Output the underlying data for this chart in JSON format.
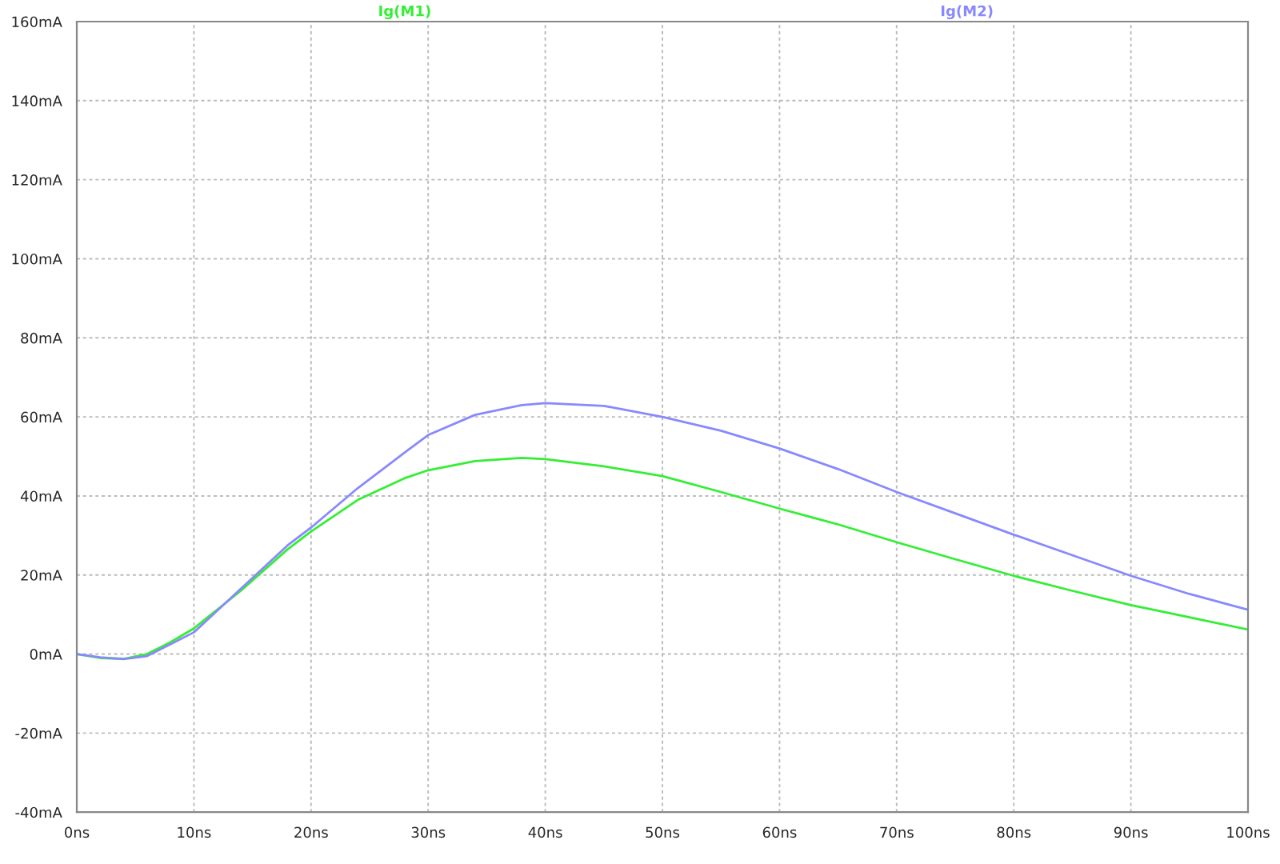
{
  "chart_data": {
    "type": "line",
    "x": [
      0,
      2,
      4,
      6,
      8,
      10,
      14,
      18,
      20,
      24,
      28,
      30,
      34,
      38,
      40,
      45,
      50,
      55,
      60,
      65,
      70,
      75,
      80,
      85,
      90,
      95,
      100
    ],
    "series": [
      {
        "name": "Ig(M1)",
        "color": "#33ee33",
        "values": [
          0,
          -1,
          -1.2,
          0,
          3,
          6.5,
          16,
          26.5,
          31,
          39,
          44.5,
          46.5,
          48.8,
          49.6,
          49.3,
          47.5,
          45,
          41,
          36.8,
          32.8,
          28.3,
          24,
          19.8,
          16,
          12.4,
          9.3,
          6.2
        ]
      },
      {
        "name": "Ig(M2)",
        "color": "#8888ff",
        "values": [
          0,
          -0.8,
          -1.3,
          -0.5,
          2.5,
          5.5,
          16.5,
          27.5,
          32,
          42,
          51,
          55.4,
          60.5,
          63,
          63.5,
          62.8,
          60,
          56.5,
          52,
          46.8,
          41,
          35.6,
          30.2,
          25,
          19.8,
          15.2,
          11.2
        ]
      }
    ],
    "xlim": [
      0,
      100
    ],
    "ylim": [
      -40,
      160
    ],
    "xticks": [
      {
        "value": 0,
        "label": "0ns"
      },
      {
        "value": 10,
        "label": "10ns"
      },
      {
        "value": 20,
        "label": "20ns"
      },
      {
        "value": 30,
        "label": "30ns"
      },
      {
        "value": 40,
        "label": "40ns"
      },
      {
        "value": 50,
        "label": "50ns"
      },
      {
        "value": 60,
        "label": "60ns"
      },
      {
        "value": 70,
        "label": "70ns"
      },
      {
        "value": 80,
        "label": "80ns"
      },
      {
        "value": 90,
        "label": "90ns"
      },
      {
        "value": 100,
        "label": "100ns"
      }
    ],
    "yticks": [
      {
        "value": -40,
        "label": "-40mA"
      },
      {
        "value": -20,
        "label": "-20mA"
      },
      {
        "value": 0,
        "label": "0mA"
      },
      {
        "value": 20,
        "label": "20mA"
      },
      {
        "value": 40,
        "label": "40mA"
      },
      {
        "value": 60,
        "label": "60mA"
      },
      {
        "value": 80,
        "label": "80mA"
      },
      {
        "value": 100,
        "label": "100mA"
      },
      {
        "value": 120,
        "label": "120mA"
      },
      {
        "value": 140,
        "label": "140mA"
      },
      {
        "value": 160,
        "label": "160mA"
      }
    ],
    "grid": true,
    "legend": "top",
    "marker": "none",
    "line_style": "solid"
  }
}
